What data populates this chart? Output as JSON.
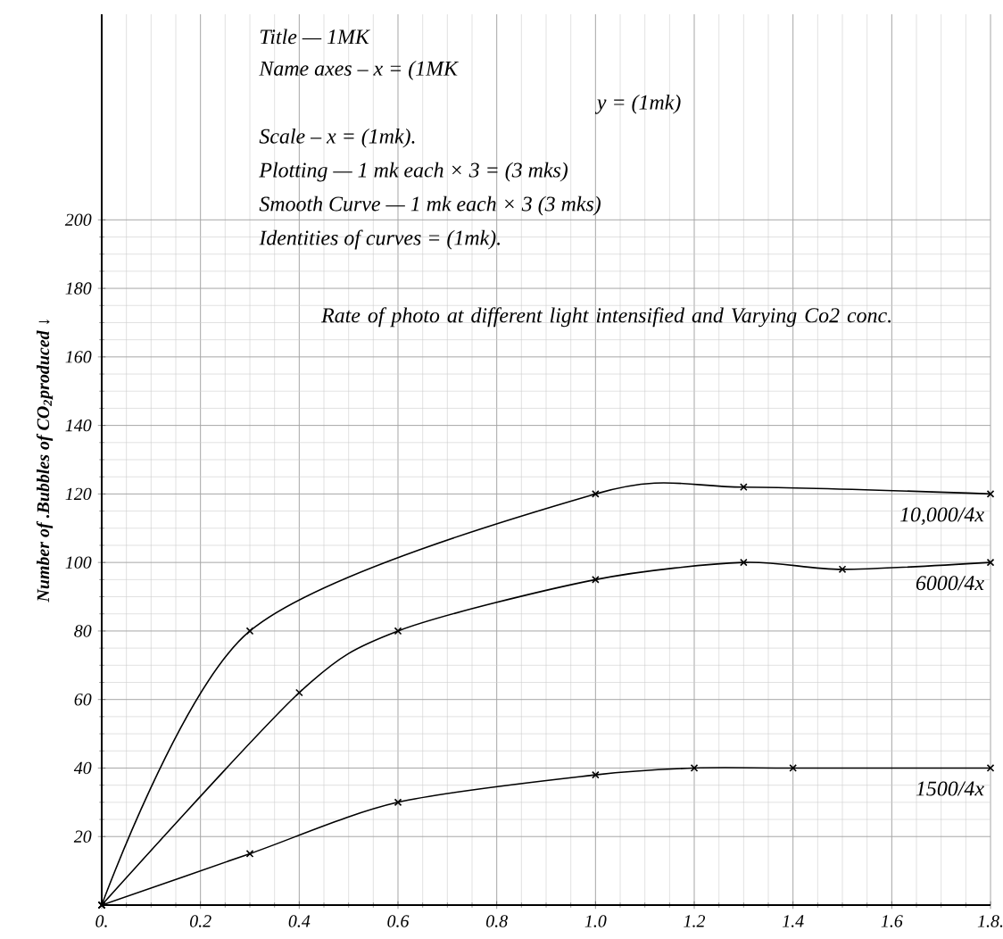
{
  "chart_data": {
    "type": "line",
    "title": "Rate of photo at different light intensified and Varying Co2 conc.",
    "annotations": [
      "Title — 1MK",
      "Name axes – x = (1MK",
      "y = (1mk)",
      "Scale – x = (1mk).",
      "Plotting — 1 mk each × 3 = (3 mks)",
      "Smooth Curve — 1 mk each × 3 (3 mks)",
      "Identities of curves = (1mk)."
    ],
    "ylabel": "Number of .Bubbles of CO$_{2}$produced ↓",
    "series": [
      {
        "name": "10,000/4x",
        "color": "#000000",
        "x": [
          0,
          0.3,
          1.0,
          1.3,
          1.8
        ],
        "values": [
          0,
          80,
          120,
          122,
          120
        ]
      },
      {
        "name": "6000/4x",
        "color": "#000000",
        "x": [
          0,
          0.4,
          0.6,
          1.0,
          1.3,
          1.5,
          1.8
        ],
        "values": [
          0,
          62,
          80,
          95,
          100,
          98,
          100
        ]
      },
      {
        "name": "1500/4x",
        "color": "#000000",
        "x": [
          0,
          0.3,
          0.6,
          1.0,
          1.2,
          1.4,
          1.8
        ],
        "values": [
          0,
          15,
          30,
          38,
          40,
          40,
          40
        ]
      }
    ],
    "xlim": [
      0,
      1.8
    ],
    "ylim": [
      0,
      260
    ],
    "xticks": [
      {
        "value": 0,
        "label": "0."
      },
      {
        "value": 0.2,
        "label": "0.2"
      },
      {
        "value": 0.4,
        "label": "0.4"
      },
      {
        "value": 0.6,
        "label": "0.6"
      },
      {
        "value": 0.8,
        "label": "0.8"
      },
      {
        "value": 1.0,
        "label": "1.0"
      },
      {
        "value": 1.2,
        "label": "1.2"
      },
      {
        "value": 1.4,
        "label": "1.4"
      },
      {
        "value": 1.6,
        "label": "1.6"
      },
      {
        "value": 1.8,
        "label": "1.8."
      }
    ],
    "yticks": [
      20,
      40,
      60,
      80,
      100,
      120,
      140,
      160,
      180,
      200
    ],
    "grid": true,
    "legend": false,
    "marker": "cross",
    "line_style": "solid"
  }
}
